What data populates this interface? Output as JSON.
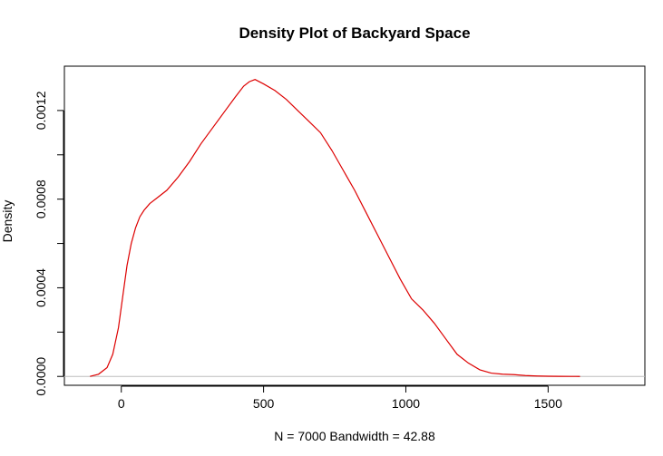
{
  "chart_data": {
    "type": "line",
    "title": "Density Plot of Backyard Space",
    "xlabel": "N = 7000   Bandwidth = 42.88",
    "ylabel": "Density",
    "xlim": [
      -200,
      1840
    ],
    "ylim": [
      -4e-05,
      0.0014
    ],
    "xticks": [
      0,
      500,
      1000,
      1500
    ],
    "xtick_labels": [
      "0",
      "500",
      "1000",
      "1500"
    ],
    "yticks": [
      0,
      0.0004,
      0.0008,
      0.0012
    ],
    "ytick_labels": [
      "0.0000",
      "0.0004",
      "0.0008",
      "0.0012"
    ],
    "ytick_minor": [
      0.0002,
      0.0006,
      0.001
    ],
    "reference_line_y": 0,
    "grid": false,
    "legend": "none",
    "colors": {
      "line": "#dd0000",
      "reference": "#bebebe",
      "frame": "#000000"
    },
    "series": [
      {
        "x": [
          -110,
          -80,
          -50,
          -30,
          -10,
          5,
          20,
          35,
          50,
          65,
          80,
          100,
          130,
          160,
          200,
          240,
          280,
          320,
          360,
          400,
          430,
          450,
          470,
          500,
          540,
          580,
          620,
          660,
          700,
          740,
          780,
          820,
          860,
          900,
          940,
          980,
          1020,
          1060,
          1100,
          1140,
          1180,
          1220,
          1260,
          1300,
          1340,
          1380,
          1420,
          1460,
          1500,
          1540,
          1580,
          1612
        ],
        "y": [
          0.0,
          1e-05,
          4e-05,
          0.0001,
          0.00022,
          0.00036,
          0.0005,
          0.0006,
          0.00067,
          0.00072,
          0.00075,
          0.00078,
          0.00081,
          0.00084,
          0.0009,
          0.00097,
          0.00105,
          0.00112,
          0.00119,
          0.00126,
          0.00131,
          0.00133,
          0.00134,
          0.00132,
          0.00129,
          0.00125,
          0.0012,
          0.00115,
          0.0011,
          0.00102,
          0.00093,
          0.00084,
          0.00074,
          0.00064,
          0.00054,
          0.00044,
          0.00035,
          0.0003,
          0.00024,
          0.00017,
          0.0001,
          6e-05,
          3e-05,
          1.5e-05,
          1e-05,
          8e-06,
          4e-06,
          2e-06,
          1e-06,
          5e-07,
          2e-07,
          0.0
        ]
      }
    ]
  }
}
